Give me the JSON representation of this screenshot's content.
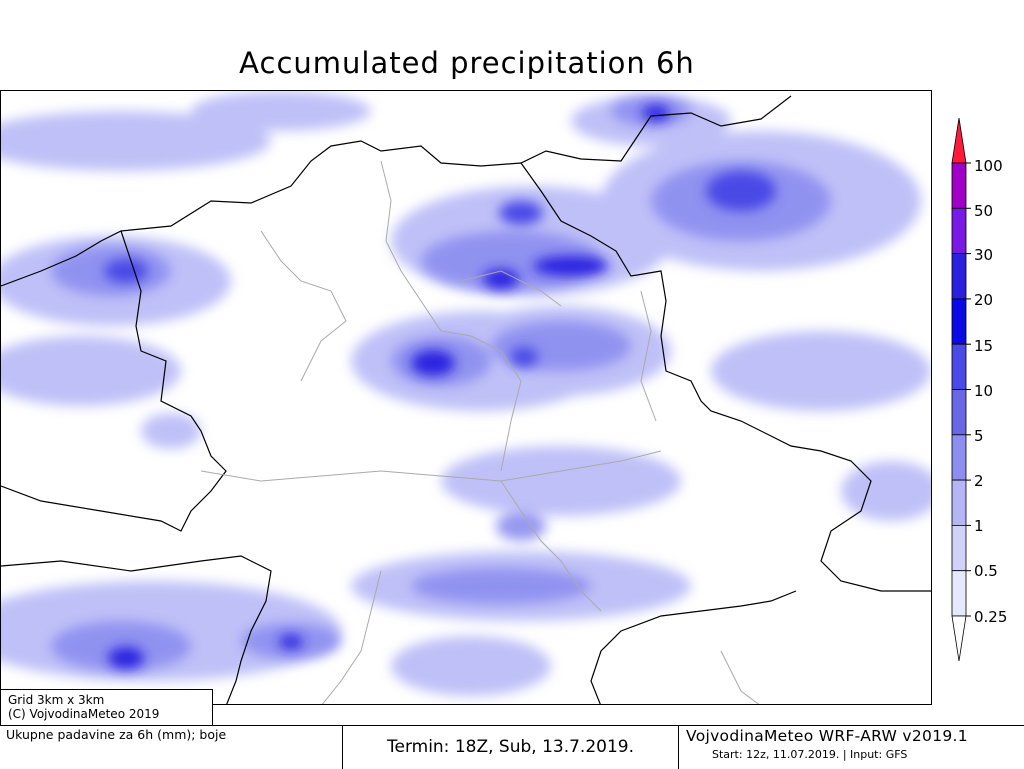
{
  "title": "Accumulated precipitation 6h",
  "legend": {
    "levels": [
      "100",
      "50",
      "30",
      "20",
      "15",
      "10",
      "5",
      "2",
      "1",
      "0.5",
      "0.25"
    ],
    "colors": [
      "#ff1a3c",
      "#a000c8",
      "#7a18e6",
      "#2a20e0",
      "#0a0ae6",
      "#4a4ae6",
      "#6868e6",
      "#8c8ef0",
      "#b4b6f6",
      "#d0d2fa",
      "#e6e8fc"
    ]
  },
  "grid_info": {
    "line1": "Grid 3km x 3km",
    "line2": "(C) VojvodinaMeteo 2019"
  },
  "footer": {
    "description": "Ukupne padavine za 6h (mm); boje",
    "termin": "Termin: 18Z, Sub, 13.7.2019.",
    "model": "VojvodinaMeteo WRF-ARW v2019.1",
    "start": "Start: 12z, 11.07.2019. | Input: GFS"
  }
}
